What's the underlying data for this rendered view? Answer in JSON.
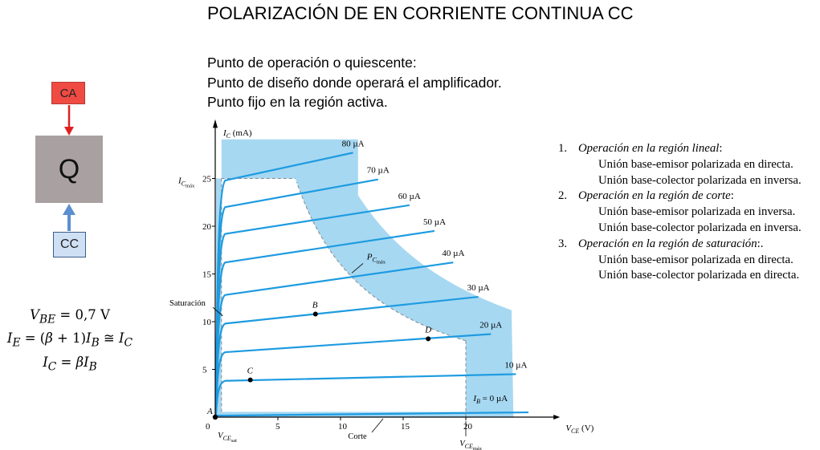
{
  "title": "POLARIZACIÓN DE EN CORRIENTE CONTINUA CC",
  "intro": {
    "line1": "Punto de operación o quiescente:",
    "line2": "Punto de diseño donde operará el amplificador.",
    "line3": "Punto fijo en la región activa."
  },
  "block_diagram": {
    "ca_label": "CA",
    "q_label": "Q",
    "cc_label": "CC",
    "colors": {
      "ca": "#ef4b43",
      "q": "#a9a1a1",
      "cc": "#cfe0f4",
      "ca_arrow": "#e02020",
      "cc_arrow": "#5b8fd0"
    }
  },
  "formulas": {
    "vbe": "V_BE = 0,7 V",
    "ie": "I_E = (β + 1)I_B ≅ I_C",
    "ic": "I_C = βI_B"
  },
  "operations": [
    {
      "number": "1.",
      "heading": "Operación en la región lineal",
      "suffix": ":",
      "line1": "Unión base-emisor polarizada en directa.",
      "line2": "Unión base-colector polarizada en inversa."
    },
    {
      "number": "2.",
      "heading": "Operación en la región de corte",
      "suffix": ":",
      "line1": "Unión base-emisor polarizada en inversa.",
      "line2": "Unión base-colector polarizada en inversa."
    },
    {
      "number": "3.",
      "heading": "Operación en la región de saturación",
      "suffix": ":.",
      "line1": "Unión base-emisor polarizada en directa.",
      "line2": "Unión base-colector polarizada en directa."
    }
  ],
  "chart_data": {
    "type": "line",
    "xlabel": "V_CE (V)",
    "ylabel": "I_C (mA)",
    "xlim": [
      0,
      25
    ],
    "ylim": [
      0,
      30
    ],
    "x_ticks": [
      0,
      5,
      10,
      15,
      20
    ],
    "y_ticks": [
      5,
      10,
      15,
      20,
      25
    ],
    "x_tick_labels": [
      "0",
      "5",
      "10",
      "15",
      "20"
    ],
    "y_tick_labels": [
      "5",
      "10",
      "15",
      "20",
      "25"
    ],
    "curve_color": "#1e9be0",
    "region_color": "#a6d8f2",
    "series": [
      {
        "name": "I_B = 0 µA",
        "ib": 0,
        "knee": 0.15,
        "x_end": 25,
        "values_at_sat_and_end": [
          0.3,
          0.5
        ]
      },
      {
        "name": "10 µA",
        "ib": 10,
        "knee": 3.8,
        "x_end": 24,
        "values_at_sat_and_end": [
          3.8,
          4.5
        ]
      },
      {
        "name": "20 µA",
        "ib": 20,
        "knee": 6.8,
        "x_end": 22,
        "values_at_sat_and_end": [
          6.8,
          8.7
        ]
      },
      {
        "name": "30 µA",
        "ib": 30,
        "knee": 9.8,
        "x_end": 21,
        "values_at_sat_and_end": [
          9.8,
          12.6
        ]
      },
      {
        "name": "40 µA",
        "ib": 40,
        "knee": 12.8,
        "x_end": 19,
        "values_at_sat_and_end": [
          12.8,
          16.2
        ]
      },
      {
        "name": "50 µA",
        "ib": 50,
        "knee": 16.2,
        "x_end": 17.5,
        "values_at_sat_and_end": [
          16.2,
          19.5
        ]
      },
      {
        "name": "60 µA",
        "ib": 60,
        "knee": 19.2,
        "x_end": 15.5,
        "values_at_sat_and_end": [
          19.2,
          22.2
        ]
      },
      {
        "name": "70 µA",
        "ib": 70,
        "knee": 22.0,
        "x_end": 13,
        "values_at_sat_and_end": [
          22.0,
          24.9
        ]
      },
      {
        "name": "80 µA",
        "ib": 80,
        "knee": 24.8,
        "x_end": 11,
        "values_at_sat_and_end": [
          24.8,
          27.7
        ]
      }
    ],
    "points": [
      {
        "label": "A",
        "x": 0,
        "y": 0
      },
      {
        "label": "B",
        "x": 8,
        "y": 10.8
      },
      {
        "label": "C",
        "x": 2.8,
        "y": 3.9
      },
      {
        "label": "D",
        "x": 17,
        "y": 8.2
      }
    ],
    "annotations": {
      "ic_max": "I_C máx",
      "pc_max": "P_C máx",
      "saturacion": "Saturación",
      "corte": "Corte",
      "vce_sat": "V_CE sat",
      "vce_max": "V_CE máx"
    },
    "vce_max_value": 20,
    "ic_max_value": 25,
    "vce_sat_value": 0.5,
    "pc_max_value": 160
  }
}
